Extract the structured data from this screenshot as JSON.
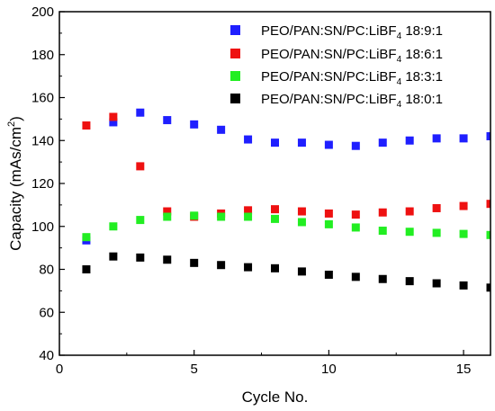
{
  "chart_data": {
    "type": "scatter",
    "xlabel": "Cycle No.",
    "ylabel_base": "Capacity (mAs/cm",
    "ylabel_sup": "2",
    "ylabel_end": ")",
    "xlim": [
      0,
      16
    ],
    "ylim": [
      40,
      200
    ],
    "x_ticks": [
      0,
      5,
      10,
      15
    ],
    "y_ticks": [
      40,
      60,
      80,
      100,
      120,
      140,
      160,
      180,
      200
    ],
    "x_minor_step": 2.5,
    "y_minor_step": 10,
    "grid": false,
    "legend_position": "top-right",
    "x": [
      1,
      2,
      3,
      4,
      5,
      6,
      7,
      8,
      9,
      10,
      11,
      12,
      13,
      14,
      15,
      16
    ],
    "series": [
      {
        "name": "PEO/PAN:SN/PC:LiBF4 18:9:1",
        "label_main": "PEO/PAN:SN/PC:LiBF",
        "label_sub": "4",
        "label_ratio": " 18:9:1",
        "color": "#1f1fff",
        "values": [
          93.5,
          148.5,
          153,
          149.5,
          147.5,
          145,
          140.5,
          139,
          139,
          138,
          137.5,
          139,
          140,
          141,
          141,
          142
        ]
      },
      {
        "name": "PEO/PAN:SN/PC:LiBF4 18:6:1",
        "label_main": "PEO/PAN:SN/PC:LiBF",
        "label_sub": "4",
        "label_ratio": " 18:6:1",
        "color": "#ee1111",
        "values": [
          147,
          151,
          128,
          107,
          104.5,
          106,
          107.5,
          108,
          107,
          106,
          105.5,
          106.5,
          107,
          108.5,
          109.5,
          110.5
        ]
      },
      {
        "name": "PEO/PAN:SN/PC:LiBF4 18:3:1",
        "label_main": "PEO/PAN:SN/PC:LiBF",
        "label_sub": "4",
        "label_ratio": " 18:3:1",
        "color": "#22ee22",
        "values": [
          95,
          100,
          103,
          104.5,
          105,
          104.5,
          104.5,
          103.5,
          102,
          101,
          99.5,
          98,
          97.5,
          97,
          96.5,
          96
        ]
      },
      {
        "name": "PEO/PAN:SN/PC:LiBF4 18:0:1",
        "label_main": "PEO/PAN:SN/PC:LiBF",
        "label_sub": "4",
        "label_ratio": " 18:0:1",
        "color": "#000000",
        "values": [
          80,
          86,
          85.5,
          84.5,
          83,
          82,
          81,
          80.5,
          79,
          77.5,
          76.5,
          75.5,
          74.5,
          73.5,
          72.5,
          71.5
        ]
      }
    ]
  }
}
